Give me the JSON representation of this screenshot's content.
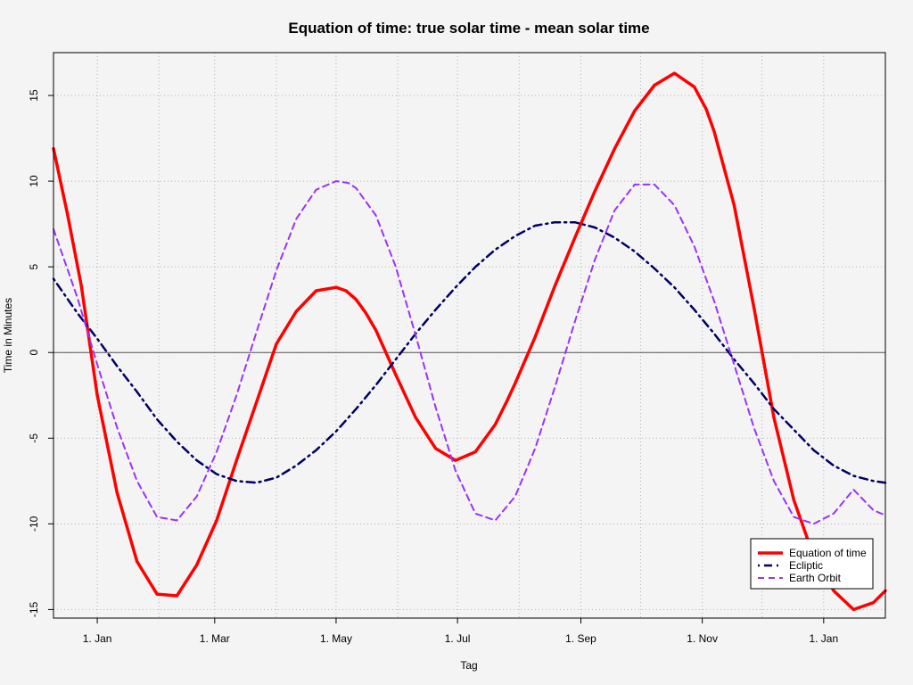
{
  "chart_data": {
    "type": "line",
    "title": "Equation of time: true solar time  - mean solar time",
    "xlabel": "Tag",
    "ylabel": "Time in Minutes",
    "xlim": [
      -22,
      396
    ],
    "ylim": [
      -15.5,
      17.5
    ],
    "grid": true,
    "legend_position": "bottom-right",
    "x_ticks": [
      {
        "value": 0,
        "label": "1. Jan"
      },
      {
        "value": 59,
        "label": "1. Mar"
      },
      {
        "value": 120,
        "label": "1. May"
      },
      {
        "value": 181,
        "label": "1. Jul"
      },
      {
        "value": 243,
        "label": "1. Sep"
      },
      {
        "value": 304,
        "label": "1. Nov"
      },
      {
        "value": 365,
        "label": "1. Jan"
      }
    ],
    "x_minor_grid": [
      -31,
      31,
      90,
      151,
      212,
      273,
      334
    ],
    "y_ticks": [
      -15,
      -10,
      -5,
      0,
      5,
      10,
      15
    ],
    "series": [
      {
        "name": "Equation of time",
        "color": "#ff0000",
        "dash": "solid",
        "x": [
          -22,
          -15,
          -8,
          0,
          10,
          20,
          30,
          40,
          50,
          60,
          70,
          80,
          90,
          100,
          110,
          120,
          125,
          130,
          135,
          140,
          145,
          150,
          160,
          170,
          180,
          190,
          200,
          206,
          210,
          220,
          230,
          240,
          250,
          260,
          270,
          280,
          290,
          300,
          306,
          310,
          320,
          330,
          340,
          350,
          360,
          370,
          380,
          390,
          396
        ],
        "y": [
          11.9,
          8.1,
          3.9,
          -2.5,
          -8.2,
          -12.2,
          -14.1,
          -14.2,
          -12.4,
          -9.8,
          -6.3,
          -2.9,
          0.5,
          2.4,
          3.6,
          3.8,
          3.6,
          3.1,
          2.3,
          1.3,
          0.0,
          -1.3,
          -3.8,
          -5.6,
          -6.3,
          -5.8,
          -4.2,
          -2.8,
          -1.8,
          0.9,
          3.9,
          6.7,
          9.4,
          11.9,
          14.1,
          15.6,
          16.3,
          15.5,
          14.2,
          12.9,
          8.6,
          2.6,
          -3.8,
          -8.6,
          -11.9,
          -13.9,
          -15.0,
          -14.6,
          -13.9
        ]
      },
      {
        "name": "Ecliptic",
        "color": "#000066",
        "dash": "dashdot",
        "x": [
          -22,
          -10,
          0,
          10,
          20,
          30,
          40,
          50,
          60,
          70,
          80,
          90,
          100,
          110,
          120,
          130,
          140,
          150,
          160,
          170,
          180,
          190,
          200,
          210,
          220,
          230,
          240,
          250,
          260,
          270,
          280,
          290,
          300,
          310,
          320,
          330,
          340,
          350,
          360,
          370,
          380,
          390,
          396
        ],
        "y": [
          4.3,
          2.3,
          0.8,
          -0.8,
          -2.3,
          -3.9,
          -5.2,
          -6.3,
          -7.1,
          -7.5,
          -7.6,
          -7.3,
          -6.6,
          -5.7,
          -4.6,
          -3.3,
          -1.9,
          -0.4,
          1.1,
          2.5,
          3.8,
          5.0,
          6.0,
          6.8,
          7.4,
          7.6,
          7.6,
          7.3,
          6.7,
          5.9,
          4.9,
          3.8,
          2.5,
          1.1,
          -0.4,
          -1.8,
          -3.3,
          -4.5,
          -5.7,
          -6.6,
          -7.2,
          -7.5,
          -7.6
        ]
      },
      {
        "name": "Earth Orbit",
        "color": "#9933ff",
        "dash": "dashed",
        "x": [
          -22,
          -10,
          0,
          10,
          20,
          30,
          40,
          50,
          60,
          70,
          80,
          90,
          100,
          110,
          120,
          126,
          130,
          140,
          150,
          160,
          170,
          180,
          190,
          200,
          210,
          220,
          230,
          240,
          250,
          260,
          270,
          280,
          290,
          300,
          310,
          320,
          330,
          340,
          350,
          360,
          370,
          380,
          390,
          396
        ],
        "y": [
          7.2,
          3.2,
          -0.7,
          -4.4,
          -7.5,
          -9.6,
          -9.8,
          -8.4,
          -5.8,
          -2.5,
          1.2,
          4.8,
          7.8,
          9.5,
          10.0,
          9.9,
          9.6,
          8.0,
          5.0,
          1.0,
          -3.2,
          -6.9,
          -9.4,
          -9.8,
          -8.4,
          -5.6,
          -2.0,
          1.8,
          5.4,
          8.3,
          9.8,
          9.8,
          8.6,
          6.2,
          3.0,
          -0.7,
          -4.4,
          -7.5,
          -9.6,
          -10.0,
          -9.4,
          -8.0,
          -9.2,
          -9.5
        ]
      }
    ]
  }
}
